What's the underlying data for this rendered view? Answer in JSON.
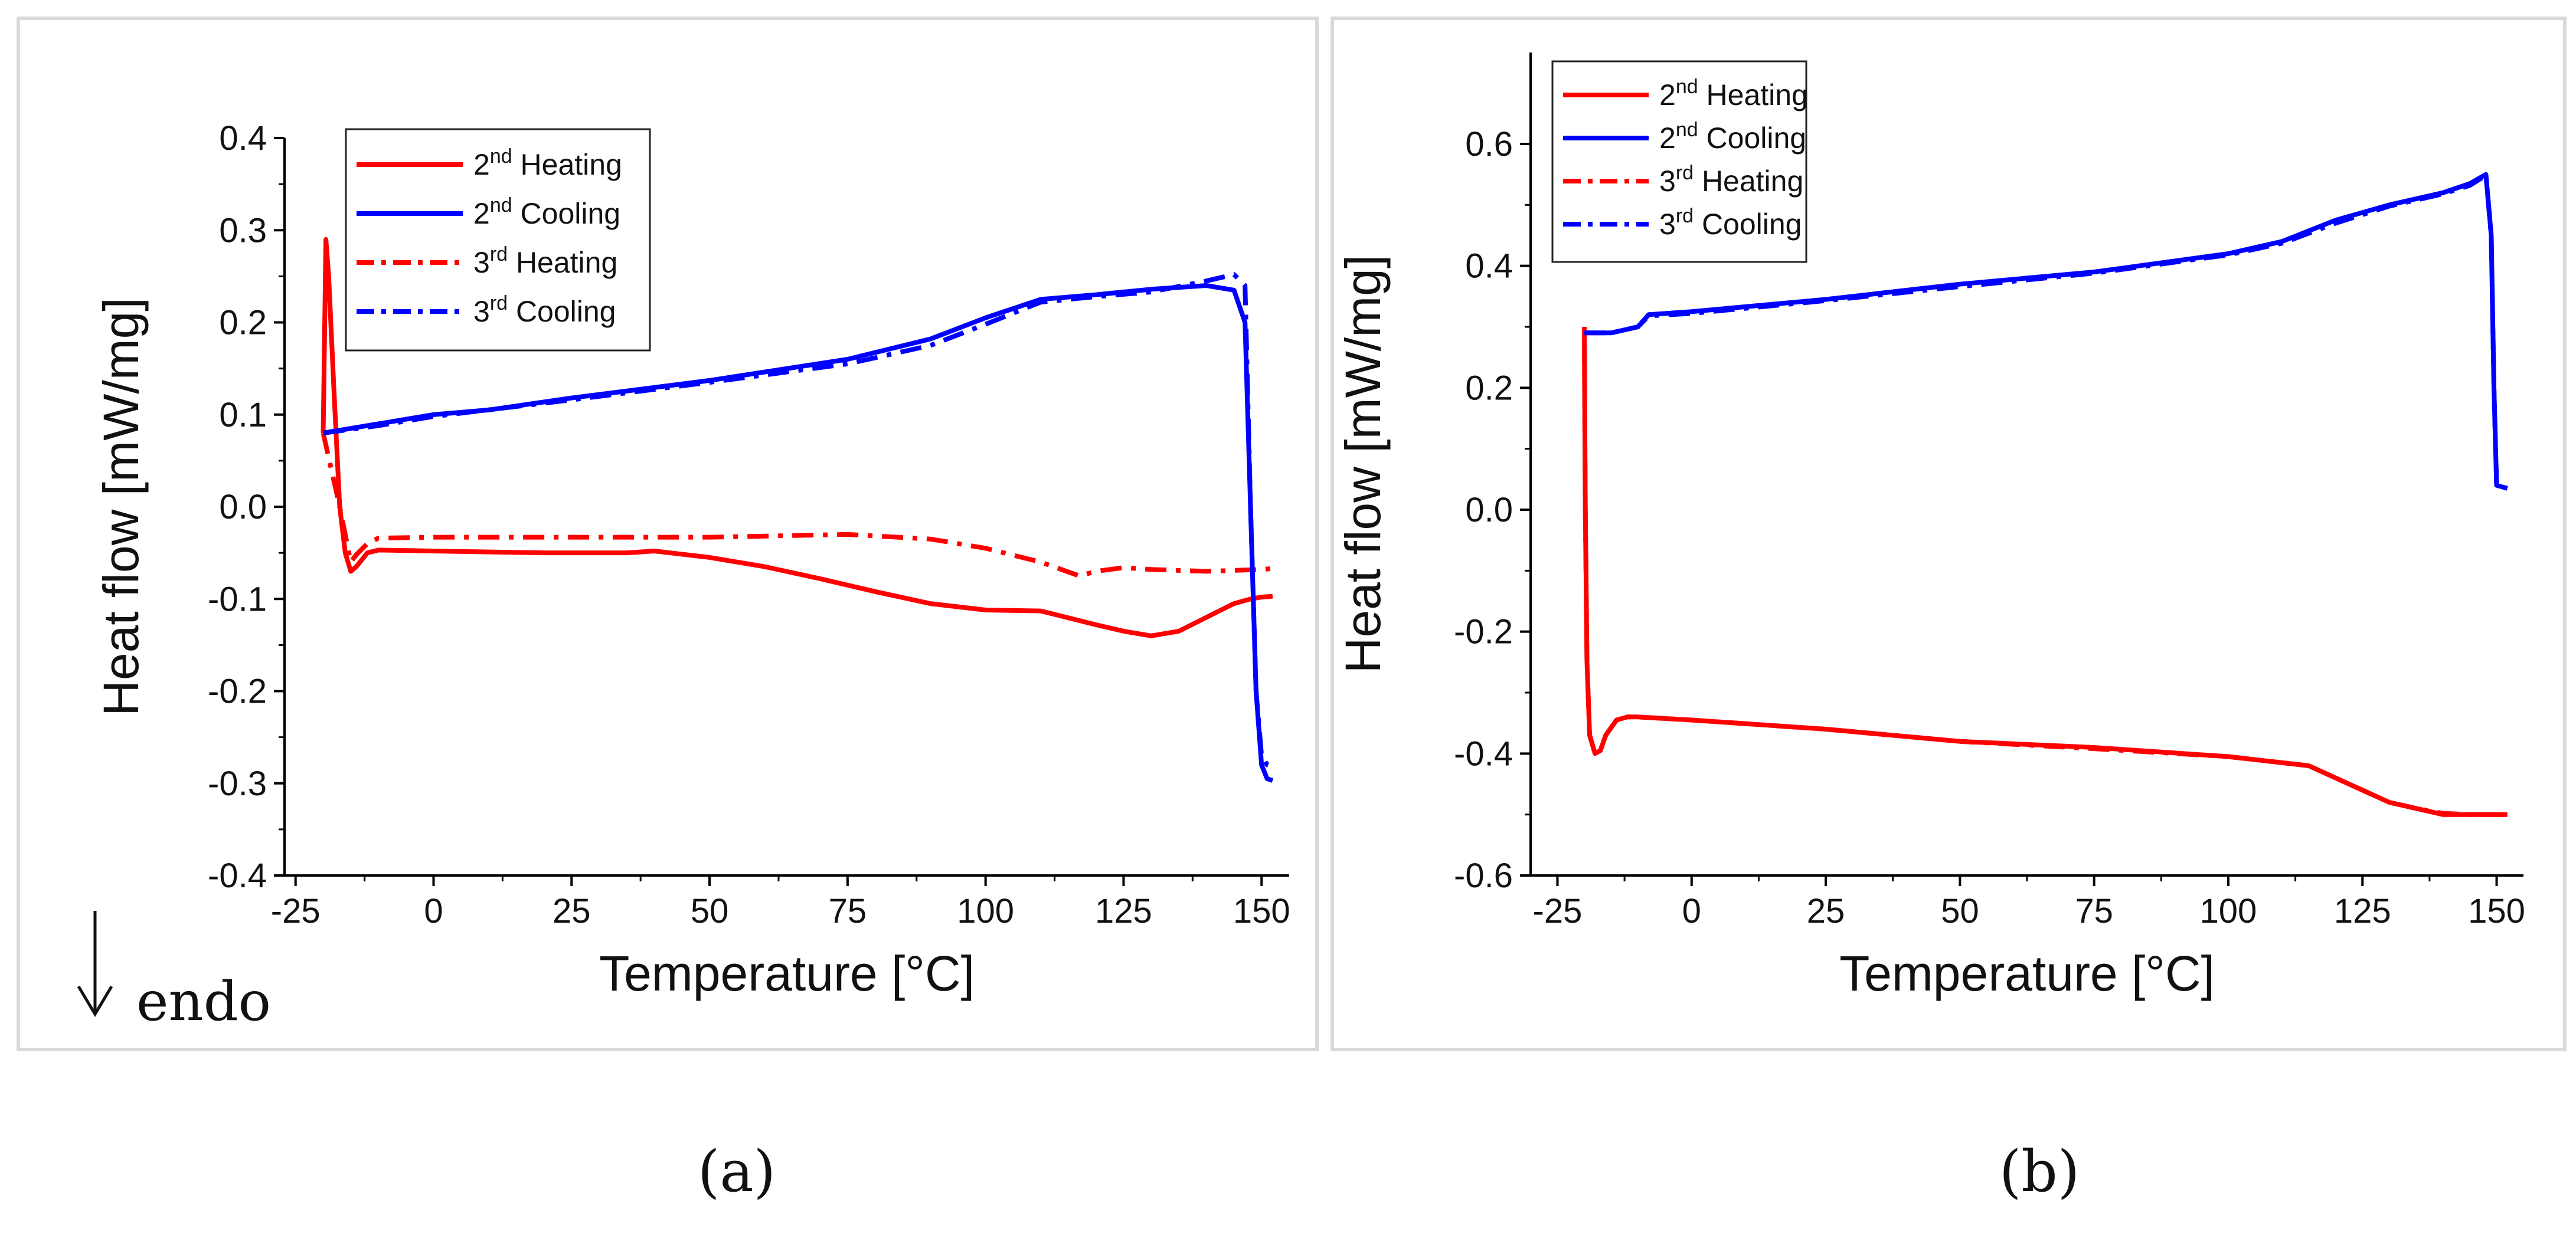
{
  "chart_data": [
    {
      "type": "line",
      "panel_label": "(a)",
      "xlabel": "Temperature [°C]",
      "ylabel": "Heat flow [mW/mg]",
      "xlim": [
        -27,
        155
      ],
      "ylim": [
        -0.4,
        0.4
      ],
      "xticks": [
        -25,
        0,
        25,
        50,
        75,
        100,
        125,
        150
      ],
      "yticks": [
        -0.4,
        -0.3,
        -0.2,
        -0.1,
        0.0,
        0.1,
        0.2,
        0.3,
        0.4
      ],
      "ytick_labels": [
        "-0.4",
        "-0.3",
        "-0.2",
        "-0.1",
        "0.0",
        "0.1",
        "0.2",
        "0.3",
        "0.4"
      ],
      "legend_position": "top-left",
      "annotation": "endo",
      "series": [
        {
          "name": "2nd Heating",
          "name_base": "2",
          "name_sup": "nd",
          "name_rest": " Heating",
          "color": "#ff0000",
          "style": "solid",
          "x": [
            -20,
            -19.5,
            -19,
            -18,
            -17,
            -16,
            -15,
            -14,
            -12,
            -10,
            0,
            20,
            35,
            40,
            50,
            60,
            70,
            80,
            90,
            100,
            110,
            120,
            125,
            130,
            135,
            140,
            145,
            148,
            150,
            152
          ],
          "y": [
            0.08,
            0.29,
            0.25,
            0.12,
            0.0,
            -0.05,
            -0.07,
            -0.065,
            -0.05,
            -0.047,
            -0.048,
            -0.05,
            -0.05,
            -0.048,
            -0.055,
            -0.065,
            -0.078,
            -0.092,
            -0.105,
            -0.112,
            -0.113,
            -0.128,
            -0.135,
            -0.14,
            -0.135,
            -0.12,
            -0.105,
            -0.1,
            -0.098,
            -0.097
          ]
        },
        {
          "name": "2nd Cooling",
          "name_base": "2",
          "name_sup": "nd",
          "name_rest": " Cooling",
          "color": "#0000ff",
          "style": "solid",
          "x": [
            -20,
            -10,
            0,
            10,
            25,
            50,
            75,
            90,
            100,
            110,
            120,
            130,
            140,
            145,
            147,
            148,
            149,
            150,
            151,
            152
          ],
          "y": [
            0.08,
            0.09,
            0.1,
            0.105,
            0.118,
            0.137,
            0.16,
            0.182,
            0.205,
            0.225,
            0.23,
            0.236,
            0.24,
            0.235,
            0.2,
            0.0,
            -0.2,
            -0.28,
            -0.295,
            -0.297
          ]
        },
        {
          "name": "3rd Heating",
          "name_base": "3",
          "name_sup": "rd",
          "name_rest": " Heating",
          "color": "#ff0000",
          "style": "dashdot",
          "x": [
            -20,
            -17,
            -15,
            -14,
            -12,
            -10,
            0,
            25,
            50,
            75,
            90,
            100,
            110,
            117,
            120,
            125,
            130,
            140,
            150,
            152
          ],
          "y": [
            0.08,
            0.0,
            -0.06,
            -0.052,
            -0.04,
            -0.034,
            -0.033,
            -0.033,
            -0.033,
            -0.03,
            -0.035,
            -0.045,
            -0.06,
            -0.075,
            -0.07,
            -0.066,
            -0.068,
            -0.07,
            -0.068,
            -0.067
          ]
        },
        {
          "name": "3rd Cooling",
          "name_base": "3",
          "name_sup": "rd",
          "name_rest": " Cooling",
          "color": "#0000ff",
          "style": "dashdot",
          "x": [
            -20,
            -10,
            0,
            25,
            50,
            75,
            90,
            100,
            110,
            120,
            130,
            140,
            145,
            147,
            148,
            149,
            150,
            151,
            152
          ],
          "y": [
            0.08,
            0.088,
            0.098,
            0.116,
            0.135,
            0.155,
            0.175,
            0.198,
            0.222,
            0.228,
            0.233,
            0.245,
            0.252,
            0.24,
            0.0,
            -0.2,
            -0.27,
            -0.28,
            -0.282
          ]
        }
      ]
    },
    {
      "type": "line",
      "panel_label": "(b)",
      "xlabel": "Temperature [°C]",
      "ylabel": "Heat flow [mW/mg]",
      "xlim": [
        -30,
        155
      ],
      "ylim": [
        -0.6,
        0.75
      ],
      "xticks": [
        -25,
        0,
        25,
        50,
        75,
        100,
        125,
        150
      ],
      "yticks": [
        -0.6,
        -0.4,
        -0.2,
        0.0,
        0.2,
        0.4,
        0.6
      ],
      "ytick_labels": [
        "-0.6",
        "-0.4",
        "-0.2",
        "0.0",
        "0.2",
        "0.4",
        "0.6"
      ],
      "legend_position": "top-left",
      "series": [
        {
          "name": "2nd Heating",
          "name_base": "2",
          "name_sup": "nd",
          "name_rest": " Heating",
          "color": "#ff0000",
          "style": "solid",
          "x": [
            -20,
            -19.8,
            -19.5,
            -19,
            -18,
            -17,
            -16,
            -14,
            -12,
            -10,
            0,
            25,
            50,
            75,
            100,
            110,
            115,
            120,
            125,
            130,
            135,
            140,
            145,
            150,
            152
          ],
          "y": [
            0.3,
            0.0,
            -0.25,
            -0.37,
            -0.4,
            -0.395,
            -0.37,
            -0.345,
            -0.34,
            -0.34,
            -0.345,
            -0.36,
            -0.38,
            -0.39,
            -0.405,
            -0.415,
            -0.42,
            -0.44,
            -0.46,
            -0.48,
            -0.49,
            -0.5,
            -0.5,
            -0.5,
            -0.5
          ]
        },
        {
          "name": "2nd Cooling",
          "name_base": "2",
          "name_sup": "nd",
          "name_rest": " Cooling",
          "color": "#0000ff",
          "style": "solid",
          "x": [
            -20,
            -15,
            -10,
            -8,
            0,
            25,
            50,
            75,
            100,
            110,
            120,
            130,
            140,
            145,
            147,
            148,
            149,
            149.5,
            150,
            152
          ],
          "y": [
            0.29,
            0.29,
            0.3,
            0.32,
            0.325,
            0.345,
            0.37,
            0.39,
            0.42,
            0.44,
            0.475,
            0.5,
            0.52,
            0.535,
            0.545,
            0.55,
            0.45,
            0.2,
            0.04,
            0.035
          ]
        },
        {
          "name": "3rd Heating",
          "name_base": "3",
          "name_sup": "rd",
          "name_rest": " Heating",
          "color": "#ff0000",
          "style": "dashdot",
          "x": [
            -20,
            -19.8,
            -19.5,
            -19,
            -18,
            -17,
            -16,
            -14,
            -12,
            -10,
            0,
            25,
            50,
            75,
            100,
            110,
            115,
            120,
            125,
            130,
            135,
            140,
            145,
            150,
            152
          ],
          "y": [
            0.3,
            0.0,
            -0.25,
            -0.37,
            -0.4,
            -0.395,
            -0.37,
            -0.345,
            -0.34,
            -0.34,
            -0.345,
            -0.36,
            -0.38,
            -0.392,
            -0.405,
            -0.415,
            -0.42,
            -0.44,
            -0.46,
            -0.48,
            -0.49,
            -0.498,
            -0.5,
            -0.5,
            -0.5
          ]
        },
        {
          "name": "3rd Cooling",
          "name_base": "3",
          "name_sup": "rd",
          "name_rest": " Cooling",
          "color": "#0000ff",
          "style": "dashdot",
          "x": [
            -20,
            -15,
            -10,
            -8,
            0,
            25,
            50,
            75,
            100,
            110,
            120,
            130,
            140,
            145,
            147,
            148,
            149,
            149.5,
            150,
            152
          ],
          "y": [
            0.29,
            0.29,
            0.3,
            0.318,
            0.322,
            0.343,
            0.366,
            0.388,
            0.418,
            0.437,
            0.47,
            0.498,
            0.518,
            0.532,
            0.543,
            0.548,
            0.45,
            0.2,
            0.04,
            0.035
          ]
        }
      ]
    }
  ]
}
